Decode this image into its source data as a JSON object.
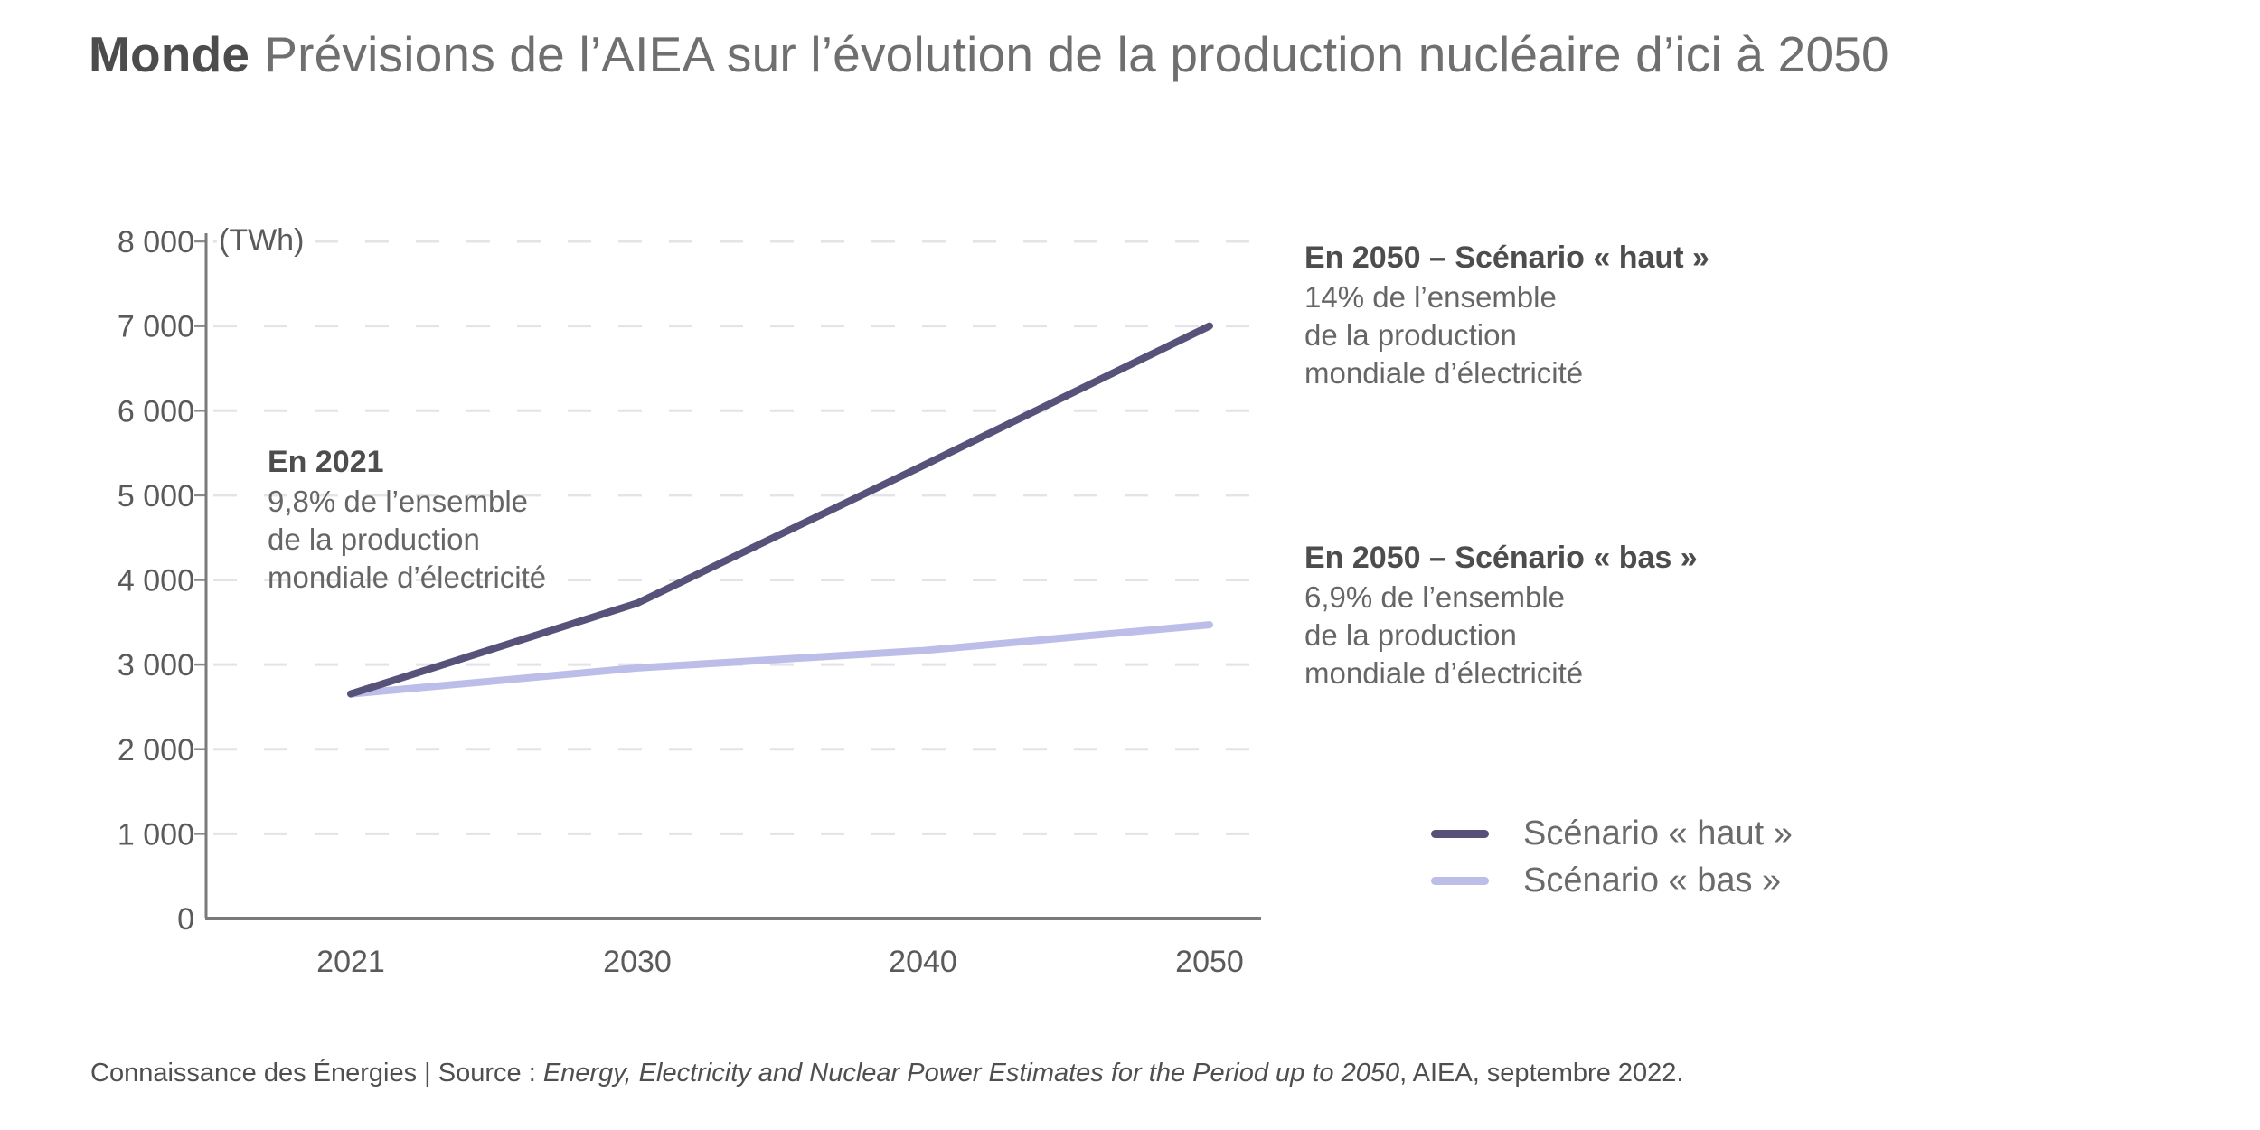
{
  "page": {
    "title_bold": "Monde",
    "title_rest": "Prévisions de l’AIEA sur l’évolution de la production nucléaire d’ici à 2050",
    "footer_prefix": "Connaissance des Énergies | Source : ",
    "footer_italic": "Energy, Electricity and Nuclear Power Estimates for the Period up to 2050",
    "footer_suffix": ", AIEA, septembre 2022."
  },
  "annotations": {
    "en2021": {
      "title": "En 2021",
      "line1": "9,8% de l’ensemble",
      "line2": "de la production",
      "line3": "mondiale d’électricité"
    },
    "haut2050": {
      "title": "En 2050 – Scénario « haut »",
      "line1": "14% de l’ensemble",
      "line2": "de la production",
      "line3": "mondiale d’électricité"
    },
    "bas2050": {
      "title": "En 2050 – Scénario « bas »",
      "line1": "6,9% de l’ensemble",
      "line2": "de la production",
      "line3": "mondiale d’électricité"
    }
  },
  "chart_data": {
    "type": "line",
    "title": "Monde — Prévisions de l’AIEA sur l’évolution de la production nucléaire d’ici à 2050",
    "unit_label": "(TWh)",
    "xlabel": "",
    "ylabel": "TWh",
    "x_categories": [
      "2021",
      "2030",
      "2040",
      "2050"
    ],
    "series": [
      {
        "name": "Scénario « haut »",
        "color": "#56527a",
        "values": [
          2653,
          3725,
          5350,
          7000
        ]
      },
      {
        "name": "Scénario « bas »",
        "color": "#bdbde9",
        "values": [
          2653,
          2960,
          3165,
          3470
        ]
      }
    ],
    "ylim": [
      0,
      8000
    ],
    "ytick_step": 1000,
    "ytick_labels": [
      "0",
      "1 000",
      "2 000",
      "3 000",
      "4 000",
      "5 000",
      "6 000",
      "7 000",
      "8 000"
    ],
    "grid": "horizontal-dashed",
    "grid_color": "#e3e3e8",
    "axis_color": "#7a7a7a",
    "tick_label_color": "#5a5a5a",
    "legend_position": "right-bottom"
  }
}
